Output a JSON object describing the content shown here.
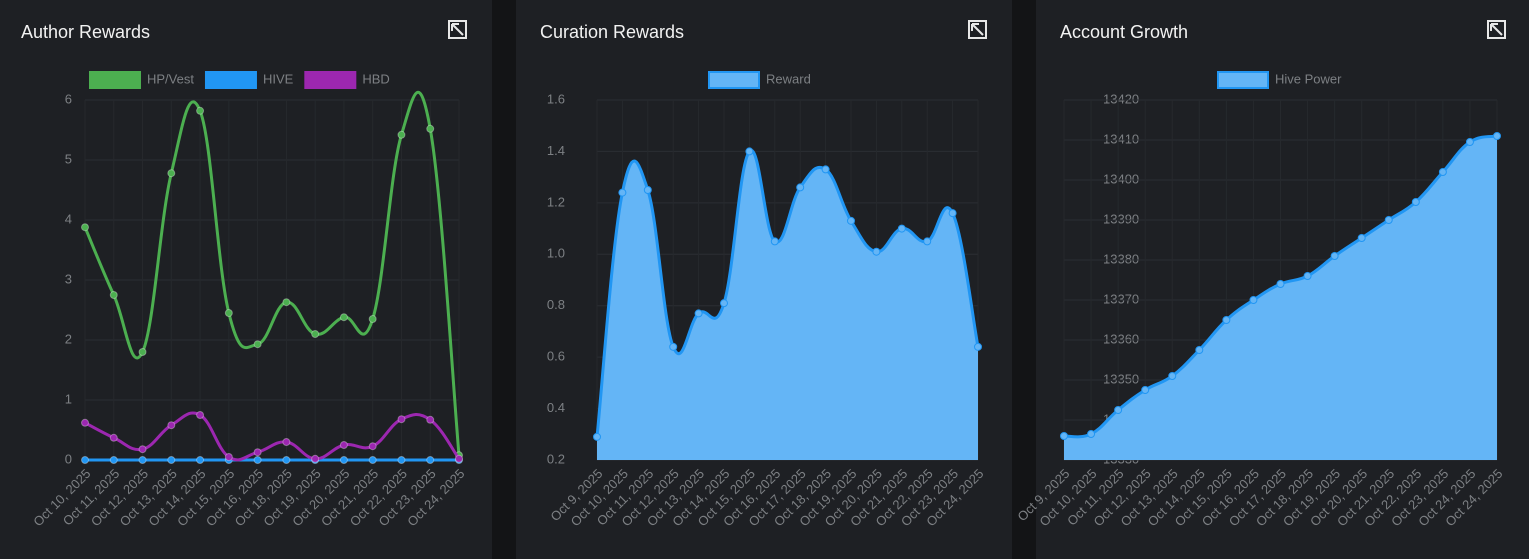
{
  "chart_data": [
    {
      "type": "line",
      "title": "Author Rewards",
      "categories": [
        "Oct 10, 2025",
        "Oct 11, 2025",
        "Oct 12, 2025",
        "Oct 13, 2025",
        "Oct 14, 2025",
        "Oct 15, 2025",
        "Oct 16, 2025",
        "Oct 18, 2025",
        "Oct 19, 2025",
        "Oct 20, 2025",
        "Oct 21, 2025",
        "Oct 22, 2025",
        "Oct 23, 2025",
        "Oct 24, 2025"
      ],
      "series": [
        {
          "name": "HP/Vest",
          "color": "#4caf50",
          "values": [
            3.88,
            2.75,
            1.8,
            4.78,
            5.82,
            2.45,
            1.93,
            2.63,
            2.1,
            2.38,
            2.35,
            5.42,
            5.52,
            0.08
          ]
        },
        {
          "name": "HIVE",
          "color": "#2196f3",
          "values": [
            0,
            0,
            0,
            0,
            0,
            0,
            0,
            0,
            0,
            0,
            0,
            0,
            0,
            0
          ]
        },
        {
          "name": "HBD",
          "color": "#9c27b0",
          "values": [
            0.62,
            0.37,
            0.18,
            0.58,
            0.75,
            0.05,
            0.13,
            0.3,
            0.02,
            0.25,
            0.23,
            0.68,
            0.67,
            0.02
          ]
        }
      ],
      "ylim": [
        0,
        6
      ],
      "yticks": [
        0,
        1,
        2,
        3,
        4,
        5,
        6
      ],
      "grid": true
    },
    {
      "type": "area",
      "title": "Curation Rewards",
      "categories": [
        "Oct 9, 2025",
        "Oct 10, 2025",
        "Oct 11, 2025",
        "Oct 12, 2025",
        "Oct 13, 2025",
        "Oct 14, 2025",
        "Oct 15, 2025",
        "Oct 16, 2025",
        "Oct 17, 2025",
        "Oct 18, 2025",
        "Oct 19, 2025",
        "Oct 20, 2025",
        "Oct 21, 2025",
        "Oct 22, 2025",
        "Oct 23, 2025",
        "Oct 24, 2025"
      ],
      "series": [
        {
          "name": "Reward",
          "color": "#2196f3",
          "values": [
            0.29,
            1.24,
            1.25,
            0.64,
            0.77,
            0.81,
            1.4,
            1.05,
            1.26,
            1.33,
            1.13,
            1.01,
            1.1,
            1.05,
            1.16,
            0.64
          ]
        }
      ],
      "ylim": [
        0.2,
        1.6
      ],
      "yticks": [
        0.2,
        0.4,
        0.6,
        0.8,
        {
          "value": 1,
          "label": "1.0"
        },
        1.2,
        1.4,
        1.6
      ],
      "grid": true
    },
    {
      "type": "area",
      "title": "Account Growth",
      "categories": [
        "Oct 9, 2025",
        "Oct 10, 2025",
        "Oct 11, 2025",
        "Oct 12, 2025",
        "Oct 13, 2025",
        "Oct 14, 2025",
        "Oct 15, 2025",
        "Oct 16, 2025",
        "Oct 17, 2025",
        "Oct 18, 2025",
        "Oct 19, 2025",
        "Oct 20, 2025",
        "Oct 21, 2025",
        "Oct 22, 2025",
        "Oct 23, 2025",
        "Oct 24, 2025",
        "Oct 24, 2025"
      ],
      "series": [
        {
          "name": "Hive Power",
          "color": "#2196f3",
          "values": [
            13336,
            13336.5,
            13342.5,
            13347.5,
            13351,
            13357.5,
            13365,
            13370,
            13374,
            13376,
            13381,
            13385.5,
            13390,
            13394.5,
            13402,
            13409.5,
            13411
          ]
        }
      ],
      "ylim": [
        13330,
        13420
      ],
      "yticks": [
        13330,
        13340,
        13350,
        13360,
        13370,
        13380,
        13390,
        13400,
        13410,
        13420
      ],
      "grid": true
    }
  ]
}
